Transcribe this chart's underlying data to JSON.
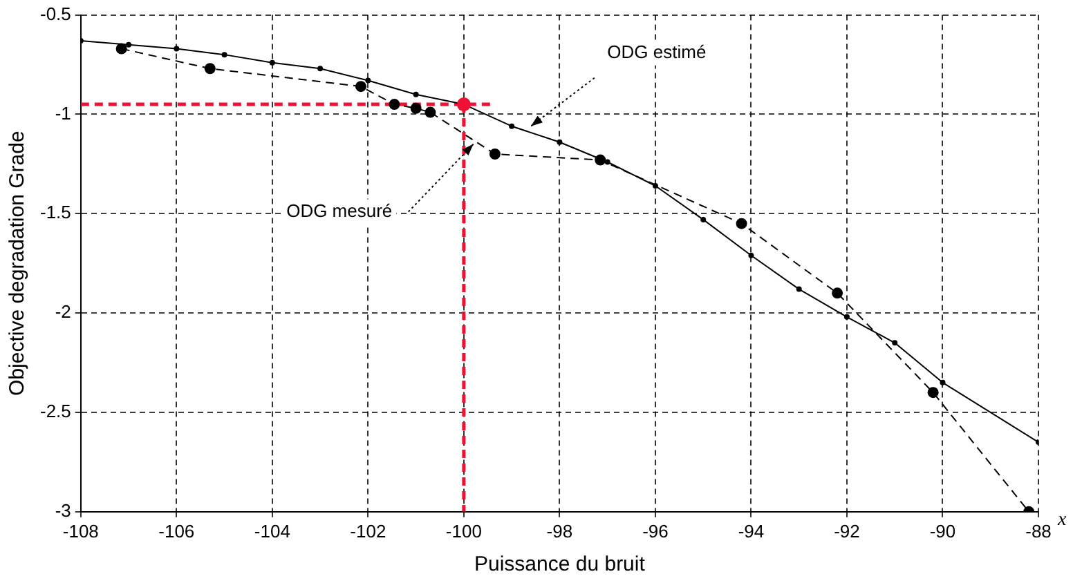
{
  "chart_data": {
    "type": "line",
    "xlabel": "Puissance du bruit",
    "ylabel": "Objective degradation Grade",
    "xlim": [
      -108,
      -88
    ],
    "xticks": [
      -108,
      -106,
      -104,
      -102,
      -100,
      -98,
      -96,
      -94,
      -92,
      -90,
      -88
    ],
    "ylim": [
      -3,
      -0.5
    ],
    "yticks": [
      -3,
      -2.5,
      -2,
      -1.5,
      -1,
      -0.5
    ],
    "grid": true,
    "legend": false,
    "annotations": [
      {
        "text": "ODG estimé",
        "x": -98.6,
        "y": -1.06
      },
      {
        "text": "ODG mesuré",
        "x": -99.8,
        "y": -1.15
      },
      "x"
    ],
    "series": [
      {
        "type": "line",
        "color": "#000000",
        "marker": "circle",
        "line_style": "solid",
        "x": [
          -108,
          -107,
          -106,
          -105,
          -104,
          -103,
          -102,
          -101,
          -100,
          -99,
          -98,
          -97,
          -96,
          -95,
          -94,
          -93,
          -92,
          -91,
          -90,
          -88
        ],
        "values": [
          -0.63,
          -0.65,
          -0.67,
          -0.7,
          -0.74,
          -0.77,
          -0.83,
          -0.9,
          -0.95,
          -1.06,
          -1.14,
          -1.24,
          -1.36,
          -1.53,
          -1.71,
          -1.88,
          -2.02,
          -2.15,
          -2.35,
          -2.65
        ]
      },
      {
        "type": "line",
        "color": "#000000",
        "marker": "circle",
        "line_style": "dashed",
        "x": [
          -107.15,
          -105.3,
          -102.15,
          -101.45,
          -101,
          -100.7,
          -99.35,
          -97.15,
          -94.2,
          -92.2,
          -90.2,
          -88.2
        ],
        "values": [
          -0.67,
          -0.77,
          -0.86,
          -0.95,
          -0.97,
          -0.99,
          -1.2,
          -1.23,
          -1.55,
          -1.9,
          -2.4,
          -3
        ]
      },
      {
        "type": "line",
        "color": "#ee1133",
        "marker": "none",
        "line_style": "dashed",
        "x": [
          -108,
          -99.4
        ],
        "values": [
          -0.95,
          -0.95
        ]
      },
      {
        "type": "line",
        "color": "#ee1133",
        "marker": "none",
        "line_style": "dashed",
        "x": [
          -100,
          -100
        ],
        "values": [
          -0.95,
          -3
        ]
      },
      {
        "type": "scatter",
        "color": "#ee1133",
        "marker": "circle",
        "x": [
          -100
        ],
        "values": [
          -0.95
        ]
      }
    ]
  }
}
